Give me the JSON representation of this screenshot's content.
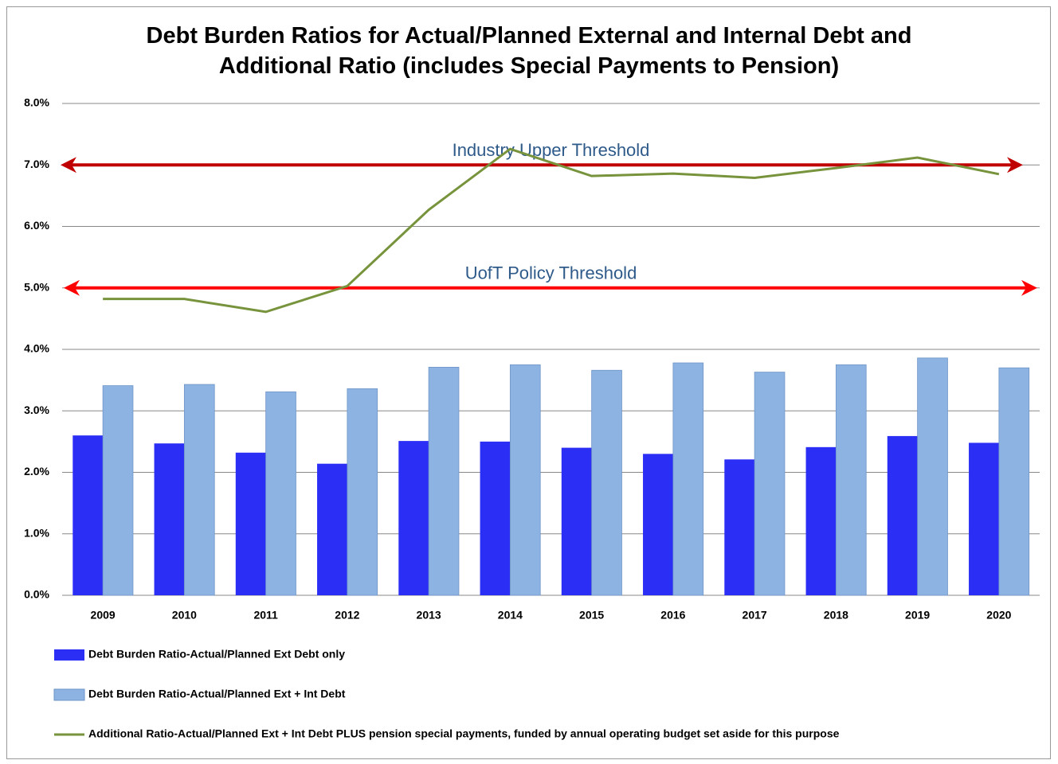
{
  "chart_data": {
    "type": "bar",
    "title": "Debt Burden Ratios for Actual/Planned External and Internal Debt and Additional Ratio (includes Special Payments to Pension)",
    "categories": [
      "2009",
      "2010",
      "2011",
      "2012",
      "2013",
      "2014",
      "2015",
      "2016",
      "2017",
      "2018",
      "2019",
      "2020"
    ],
    "series": [
      {
        "name": "Debt Burden Ratio-Actual/Planned Ext Debt only",
        "type": "bar",
        "color": "#2b2ff5",
        "values": [
          2.6,
          2.47,
          2.32,
          2.14,
          2.51,
          2.5,
          2.4,
          2.3,
          2.21,
          2.41,
          2.59,
          2.48
        ]
      },
      {
        "name": "Debt Burden Ratio-Actual/Planned Ext + Int Debt",
        "type": "bar",
        "color": "#8db3e2",
        "values": [
          3.41,
          3.43,
          3.31,
          3.36,
          3.71,
          3.75,
          3.66,
          3.78,
          3.63,
          3.75,
          3.86,
          3.7
        ]
      },
      {
        "name": "Additional Ratio-Actual/Planned Ext + Int Debt PLUS pension special payments, funded by annual operating budget set aside for this purpose",
        "type": "line",
        "color": "#77933c",
        "values": [
          4.82,
          4.82,
          4.61,
          5.03,
          6.27,
          7.26,
          6.82,
          6.86,
          6.79,
          6.95,
          7.12,
          6.85
        ]
      }
    ],
    "reference_lines": [
      {
        "value": 7,
        "label": "Industry Upper Threshold",
        "color": "#c00000"
      },
      {
        "value": 5,
        "label": "UofT Policy Threshold",
        "color": "#ff0000"
      }
    ],
    "ylim": [
      0,
      8
    ],
    "yticks": [
      {
        "value": 0,
        "label": "0.0%"
      },
      {
        "value": 1,
        "label": "1.0%"
      },
      {
        "value": 2,
        "label": "2.0%"
      },
      {
        "value": 3,
        "label": "3.0%"
      },
      {
        "value": 4,
        "label": "4.0%"
      },
      {
        "value": 5,
        "label": "5.0%"
      },
      {
        "value": 6,
        "label": "6.0%"
      },
      {
        "value": 7,
        "label": "7.0%"
      },
      {
        "value": 8,
        "label": "8.0%"
      }
    ],
    "grid": true,
    "legend": "bottom"
  }
}
